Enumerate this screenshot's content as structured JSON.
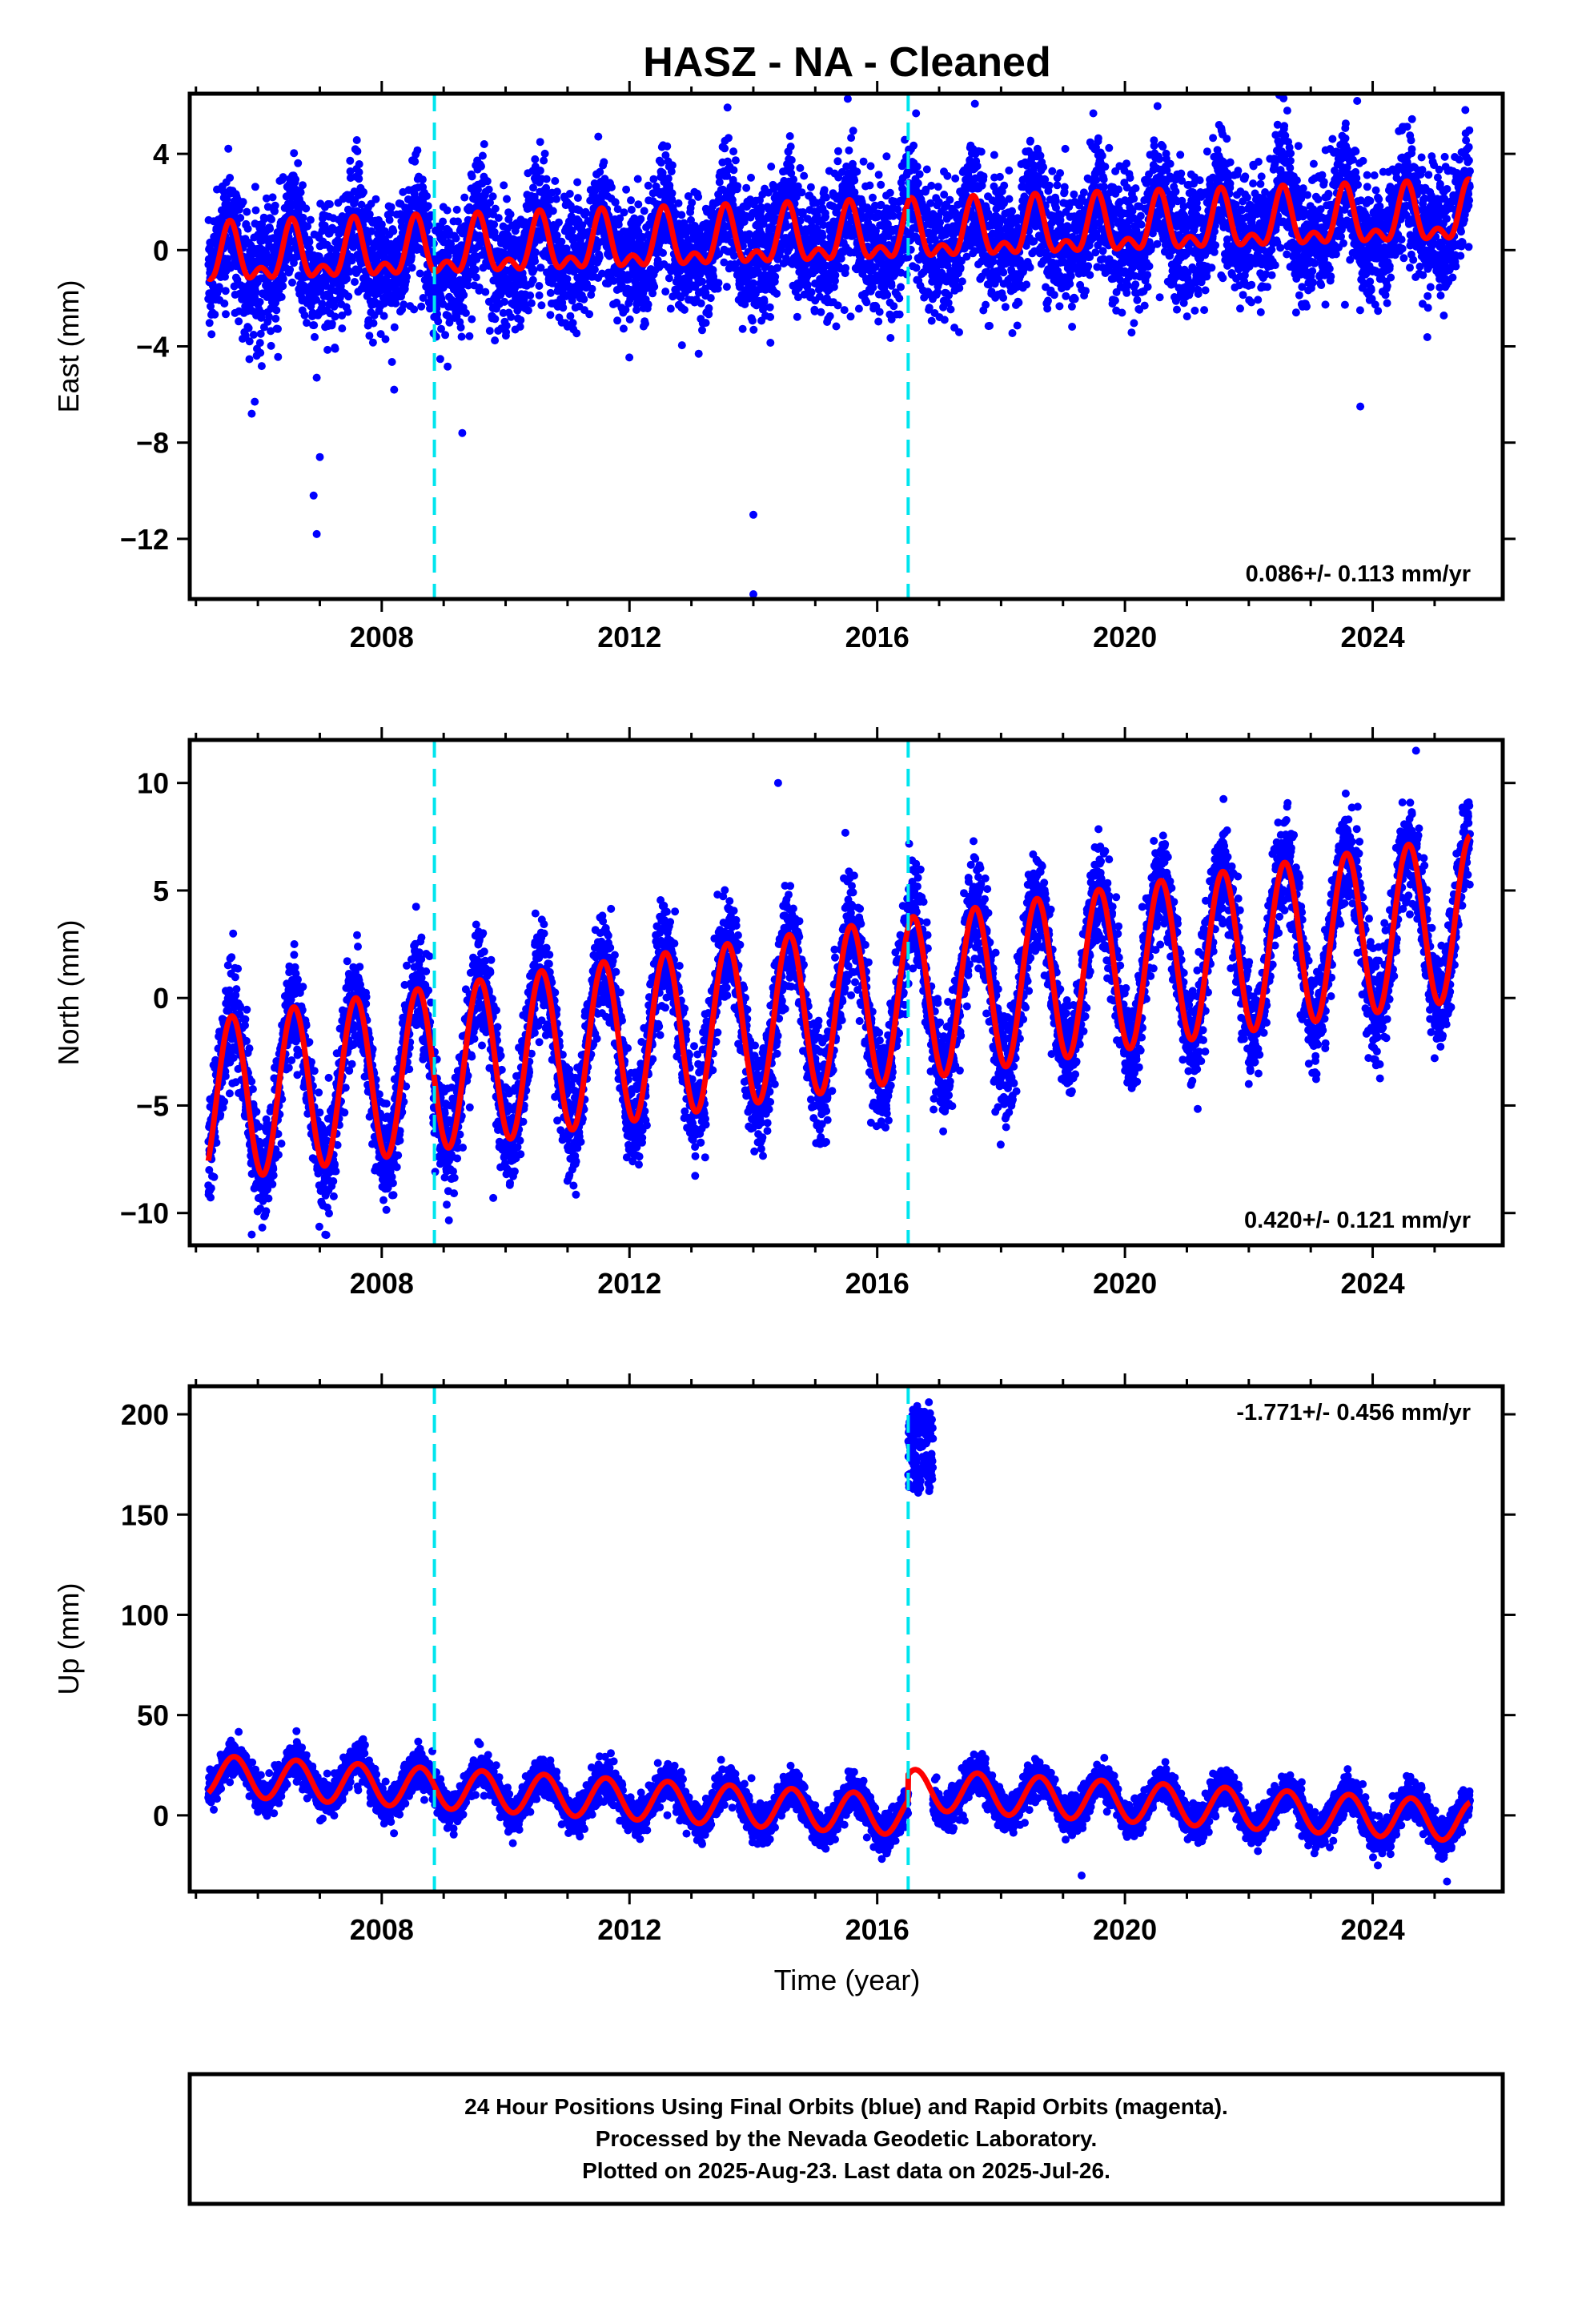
{
  "title": "HASZ  - NA - Cleaned",
  "xlabel": "Time (year)",
  "colors": {
    "points": "#0000ff",
    "model": "#ff0000",
    "events": "#00e5ee",
    "frame": "#000000"
  },
  "footer": {
    "line1": "24 Hour Positions Using Final Orbits (blue) and Rapid Orbits (magenta).",
    "line2": "Processed by the Nevada Geodetic Laboratory.",
    "line3": "Plotted on 2025-Aug-23. Last data on 2025-Jul-26."
  },
  "chart_data": [
    {
      "type": "scatter",
      "component": "East",
      "ylabel": "East (mm)",
      "rate_label": "0.086+/- 0.113 mm/yr",
      "xlim": [
        2004.9,
        2026.1
      ],
      "ylim": [
        -14.5,
        6.5
      ],
      "x_ticks": [
        2008,
        2012,
        2016,
        2020,
        2024
      ],
      "y_ticks": [
        4,
        0,
        -4,
        -8,
        -12
      ],
      "event_lines": [
        2008.85,
        2016.5
      ],
      "data_span": [
        2005.2,
        2025.57
      ],
      "model": {
        "trend": 0.086,
        "offset": -0.4,
        "annual_amplitude": 1.0,
        "annual_peak": 0.55,
        "semiannual_amplitude": 0.6,
        "semiannual_peak": 0.55,
        "noise_sd": 1.3
      },
      "outliers": [
        [
          2005.9,
          -6.8
        ],
        [
          2005.95,
          -6.3
        ],
        [
          2006.9,
          -10.2
        ],
        [
          2006.95,
          -11.8
        ],
        [
          2007.0,
          -8.6
        ],
        [
          2006.95,
          -5.3
        ],
        [
          2009.3,
          -7.6
        ],
        [
          2014.0,
          -11.0
        ],
        [
          2014.0,
          -14.3
        ],
        [
          2008.2,
          -5.8
        ],
        [
          2023.8,
          -6.5
        ],
        [
          2023.75,
          6.2
        ]
      ]
    },
    {
      "type": "scatter",
      "component": "North",
      "ylabel": "North (mm)",
      "rate_label": "0.420+/- 0.121 mm/yr",
      "xlim": [
        2004.9,
        2026.1
      ],
      "ylim": [
        -11.5,
        12.0
      ],
      "x_ticks": [
        2008,
        2012,
        2016,
        2020,
        2024
      ],
      "y_ticks": [
        10,
        5,
        0,
        -5,
        -10
      ],
      "event_lines": [
        2008.85,
        2016.5
      ],
      "data_span": [
        2005.2,
        2025.57
      ],
      "model": {
        "trend": 0.42,
        "offset": -4.8,
        "annual_amplitude": 3.8,
        "annual_peak": 0.58,
        "semiannual_amplitude": 0.0,
        "semiannual_peak": 0.0,
        "noise_sd": 1.2
      },
      "outliers": [
        [
          2005.6,
          3.0
        ],
        [
          2014.4,
          10.0
        ],
        [
          2024.7,
          11.5
        ],
        [
          2009.8,
          -9.3
        ],
        [
          2005.9,
          -11.0
        ],
        [
          2025.0,
          -2.8
        ],
        [
          2015.9,
          -5.8
        ],
        [
          2022.0,
          -4.0
        ]
      ]
    },
    {
      "type": "scatter",
      "component": "Up",
      "ylabel": "Up (mm)",
      "rate_label": "-1.771+/- 0.456 mm/yr",
      "xlim": [
        2004.9,
        2026.1
      ],
      "ylim": [
        -38,
        214
      ],
      "x_ticks": [
        2008,
        2012,
        2016,
        2020,
        2024
      ],
      "y_ticks": [
        200,
        150,
        100,
        50,
        0
      ],
      "event_lines": [
        2008.85,
        2016.5
      ],
      "data_span": [
        2005.2,
        2025.57
      ],
      "model": {
        "trend": -1.771,
        "offset": 20.0,
        "annual_amplitude": 10.0,
        "annual_peak": 0.62,
        "semiannual_amplitude": 0.0,
        "semiannual_peak": 0.0,
        "noise_sd": 4.5,
        "step_at": 2016.5,
        "step_size": 13.0
      },
      "anomaly": {
        "x_range": [
          2016.5,
          2016.9
        ],
        "y_range": [
          160,
          208
        ]
      },
      "outliers": [
        [
          2007.7,
          38.0
        ],
        [
          2011.7,
          31.0
        ],
        [
          2019.3,
          -30.0
        ],
        [
          2025.2,
          -33.0
        ]
      ]
    }
  ]
}
